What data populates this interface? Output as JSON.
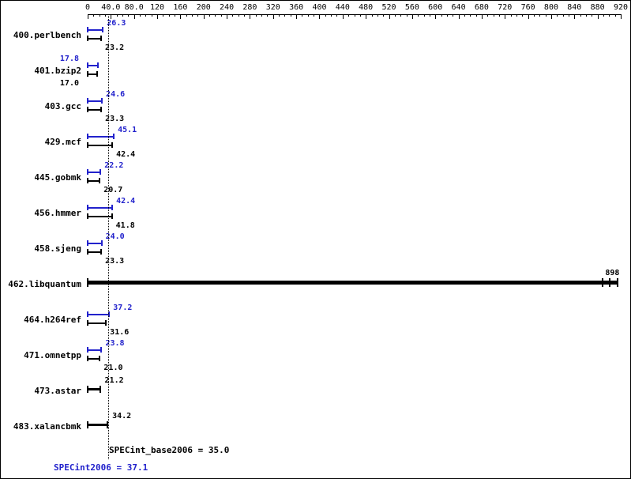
{
  "chart_data": {
    "type": "bar",
    "orientation": "horizontal",
    "legend_position": "none",
    "grid": false,
    "axis": {
      "min": 0,
      "max": 920,
      "major_step": 40,
      "minor_step": 10,
      "tick_labels": [
        "0",
        "40.0",
        "80.0",
        "120",
        "160",
        "200",
        "240",
        "280",
        "320",
        "360",
        "400",
        "440",
        "480",
        "520",
        "560",
        "600",
        "640",
        "680",
        "720",
        "760",
        "800",
        "840",
        "880",
        "920"
      ]
    },
    "colors": {
      "peak": "#2222cc",
      "base": "#000000"
    },
    "benchmarks": [
      {
        "name": "400.perlbench",
        "peak": 26.3,
        "base": 23.2,
        "peak_label": "26.3",
        "base_label": "23.2"
      },
      {
        "name": "401.bzip2",
        "peak": 17.8,
        "base": 17.0,
        "peak_label": "17.8",
        "base_label": "17.0",
        "label_side": "left"
      },
      {
        "name": "403.gcc",
        "peak": 24.6,
        "base": 23.3,
        "peak_label": "24.6",
        "base_label": "23.3"
      },
      {
        "name": "429.mcf",
        "peak": 45.1,
        "base": 42.4,
        "peak_label": "45.1",
        "base_label": "42.4"
      },
      {
        "name": "445.gobmk",
        "peak": 22.2,
        "base": 20.7,
        "peak_label": "22.2",
        "base_label": "20.7"
      },
      {
        "name": "456.hmmer",
        "peak": 42.4,
        "base": 41.8,
        "peak_label": "42.4",
        "base_label": "41.8"
      },
      {
        "name": "458.sjeng",
        "peak": 24.0,
        "base": 23.3,
        "peak_label": "24.0",
        "base_label": "23.3"
      },
      {
        "name": "462.libquantum",
        "single": 898,
        "single_label": "898",
        "bar_to": 915,
        "caps": [
          888,
          901,
          915
        ],
        "weight": "heavy",
        "label_anchor": "end"
      },
      {
        "name": "464.h264ref",
        "peak": 37.2,
        "base": 31.6,
        "peak_label": "37.2",
        "base_label": "31.6"
      },
      {
        "name": "471.omnetpp",
        "peak": 23.8,
        "base": 21.0,
        "peak_label": "23.8",
        "base_label": "21.0"
      },
      {
        "name": "473.astar",
        "single": 21.2,
        "single_label": "21.2"
      },
      {
        "name": "483.xalancbmk",
        "single": 34.2,
        "single_label": "34.2"
      }
    ],
    "summary": {
      "base_text": "SPECint_base2006 = 35.0",
      "peak_text": "SPECint2006 = 37.1",
      "base_value": 35.0,
      "peak_value": 37.1
    }
  }
}
